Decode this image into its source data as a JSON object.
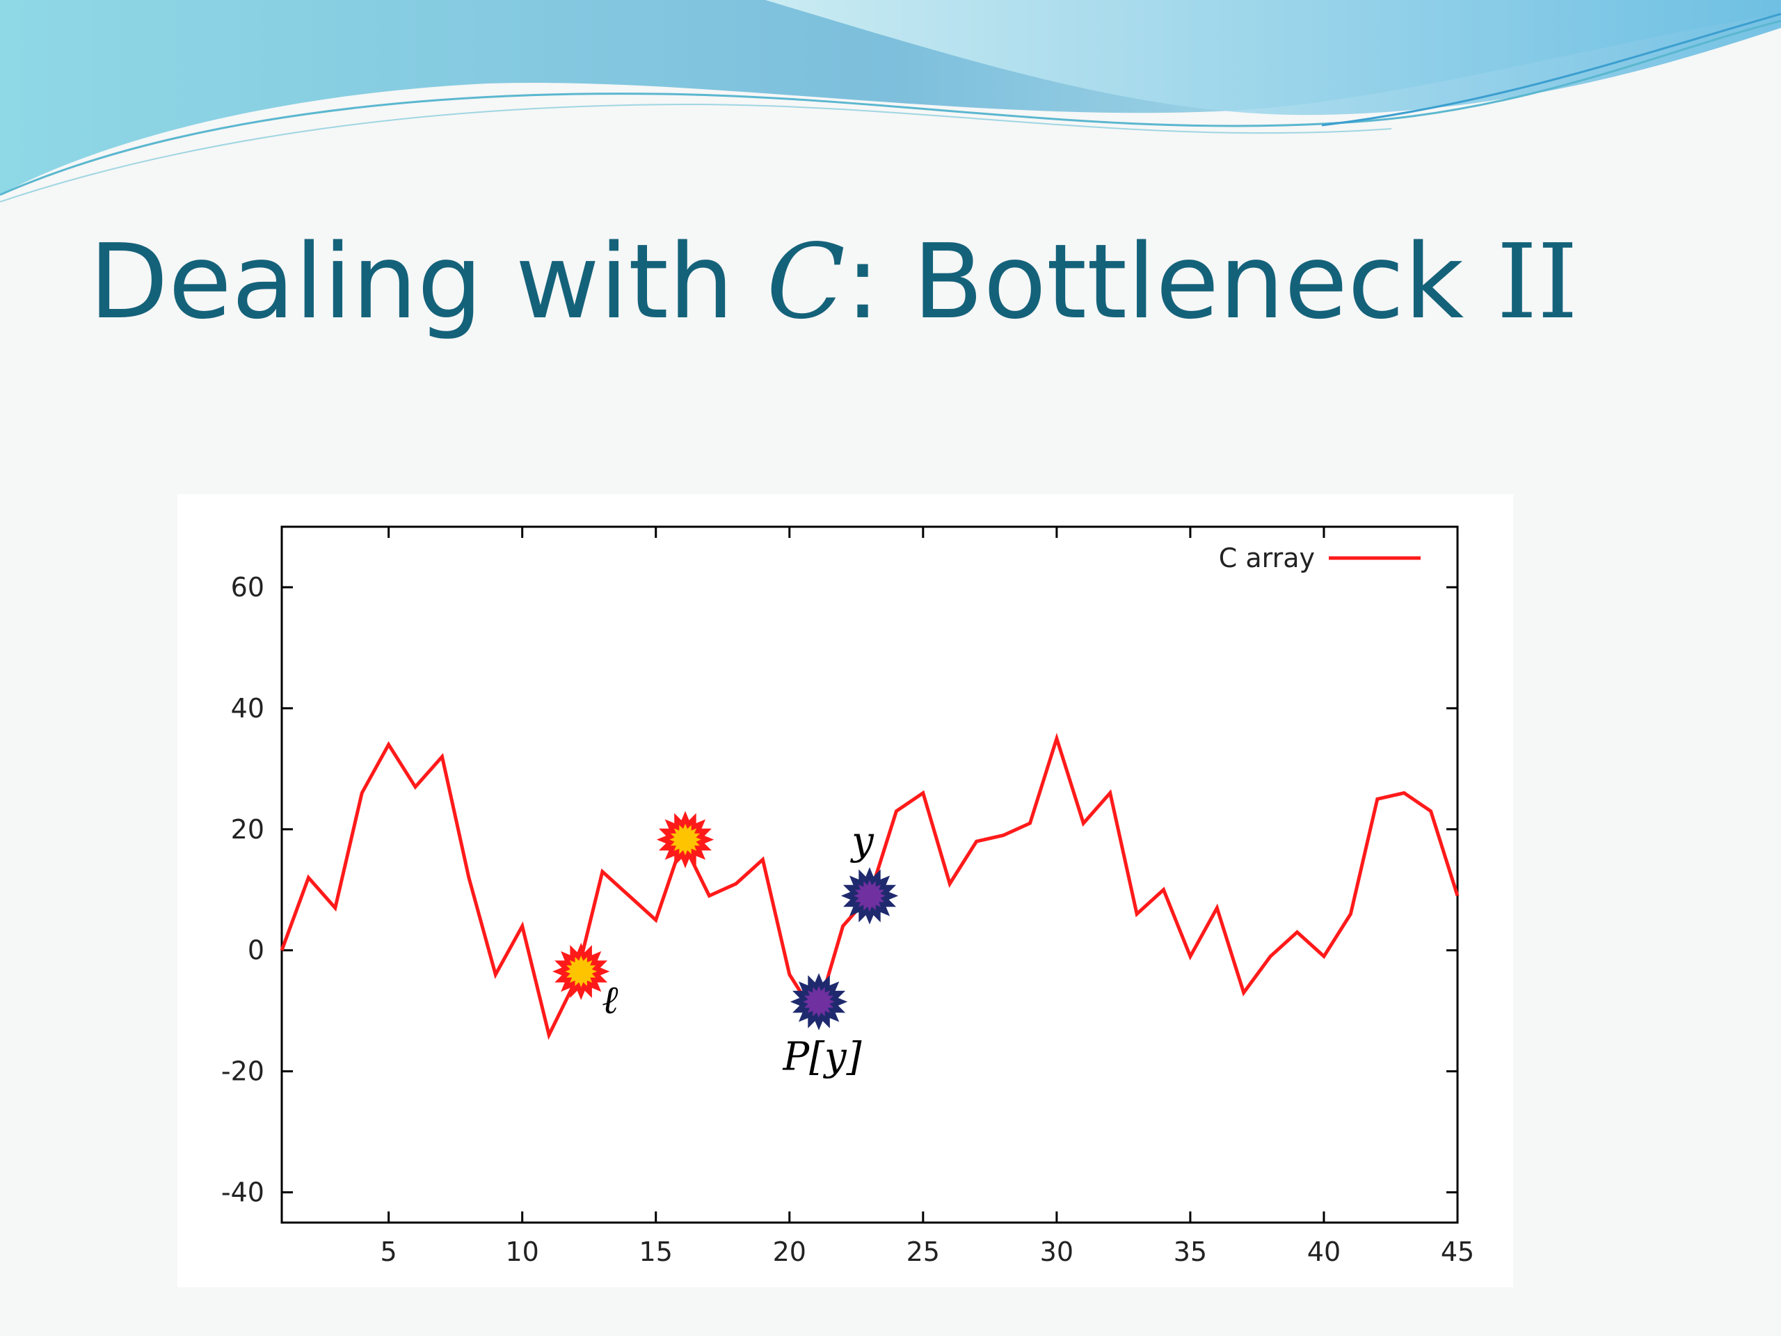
{
  "slide": {
    "title_prefix": "Dealing with ",
    "title_var": "C",
    "title_middle": ": Bottleneck ",
    "title_roman": "II"
  },
  "colors": {
    "title": "#14627a",
    "line": "#ff1a1a",
    "marker_orange_fill": "#ffc400",
    "marker_orange_edge": "#ff1a1a",
    "marker_purple_fill": "#7030a0",
    "marker_purple_edge": "#1f2a6e"
  },
  "chart_data": {
    "type": "line",
    "x": [
      1,
      2,
      3,
      4,
      5,
      6,
      7,
      8,
      9,
      10,
      11,
      12,
      13,
      14,
      15,
      16,
      17,
      18,
      19,
      20,
      21,
      22,
      23,
      24,
      25,
      26,
      27,
      28,
      29,
      30,
      31,
      32,
      33,
      34,
      35,
      36,
      37,
      38,
      39,
      40,
      41,
      42,
      43,
      44,
      45
    ],
    "series": [
      {
        "name": "C array",
        "values": [
          0,
          12,
          7,
          26,
          34,
          27,
          32,
          12,
          -4,
          4,
          -14,
          -5,
          13,
          9,
          5,
          18,
          9,
          11,
          15,
          -4,
          -11,
          4,
          9,
          23,
          26,
          11,
          18,
          19,
          21,
          35,
          21,
          26,
          6,
          10,
          -1,
          7,
          -7,
          -1,
          3,
          -1,
          6,
          25,
          26,
          23,
          9
        ]
      }
    ],
    "xlim": [
      1,
      45
    ],
    "ylim": [
      -45,
      70
    ],
    "xticks": [
      5,
      10,
      15,
      20,
      25,
      30,
      35,
      40,
      45
    ],
    "yticks": [
      -40,
      -20,
      0,
      20,
      40,
      60
    ],
    "legend_position": "top-right",
    "grid": false,
    "annotations": [
      {
        "x": 12.2,
        "y": -3.5,
        "marker": "orange-star",
        "label": "ℓ"
      },
      {
        "x": 16.1,
        "y": 18.3,
        "marker": "orange-star",
        "label": ""
      },
      {
        "x": 21.1,
        "y": -8.5,
        "marker": "purple-star",
        "label": "P[y]"
      },
      {
        "x": 23.0,
        "y": 9.0,
        "marker": "purple-star",
        "label": "y"
      }
    ]
  }
}
